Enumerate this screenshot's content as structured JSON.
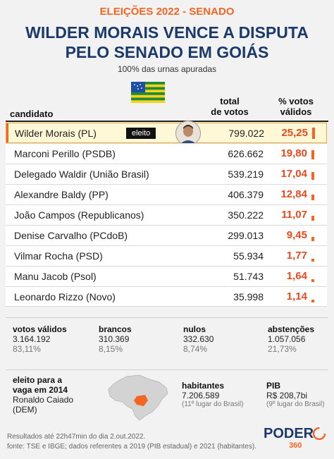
{
  "header": {
    "kicker": "ELEIÇÕES 2022 - SENADO",
    "title_line1": "WILDER MORAIS VENCE A DISPUTA",
    "title_line2": "PELO SENADO EM GOIÁS",
    "subtitle": "100% das urnas apuradas"
  },
  "table": {
    "col_candidate": "candidato",
    "col_votes_l1": "total",
    "col_votes_l2": "de votos",
    "col_pct_l1": "% votos",
    "col_pct_l2": "válidos",
    "winner_badge": "eleito",
    "rows": [
      {
        "name": "Wilder Morais (PL)",
        "votes": "799.022",
        "pct": "25,25",
        "pct_value": 25.25
      },
      {
        "name": "Marconi Perillo (PSDB)",
        "votes": "626.662",
        "pct": "19,80",
        "pct_value": 19.8
      },
      {
        "name": "Delegado Waldir (União Brasil)",
        "votes": "539.219",
        "pct": "17,04",
        "pct_value": 17.04
      },
      {
        "name": "Alexandre Baldy (PP)",
        "votes": "406.379",
        "pct": "12,84",
        "pct_value": 12.84
      },
      {
        "name": "João Campos (Republicanos)",
        "votes": "350.222",
        "pct": "11,07",
        "pct_value": 11.07
      },
      {
        "name": "Denise Carvalho (PCdoB)",
        "votes": "299.013",
        "pct": "9,45",
        "pct_value": 9.45
      },
      {
        "name": "Vilmar Rocha (PSD)",
        "votes": "55.934",
        "pct": "1,77",
        "pct_value": 1.77
      },
      {
        "name": "Manu Jacob (Psol)",
        "votes": "51.743",
        "pct": "1,64",
        "pct_value": 1.64
      },
      {
        "name": "Leonardo Rizzo (Novo)",
        "votes": "35.998",
        "pct": "1,14",
        "pct_value": 1.14
      }
    ]
  },
  "stats": [
    {
      "label": "votos válidos",
      "value": "3.164.192",
      "pct": "83,11%"
    },
    {
      "label": "brancos",
      "value": "310.369",
      "pct": "8,15%"
    },
    {
      "label": "nulos",
      "value": "332.630",
      "pct": "8,74%"
    },
    {
      "label": "abstenções",
      "value": "1.057.056",
      "pct": "21,73%"
    }
  ],
  "info": {
    "elected2014_l1": "eleito para a",
    "elected2014_l2": "vaga em 2014",
    "elected2014_name": "Ronaldo Caiado",
    "elected2014_party": "(DEM)",
    "hab_label": "habitantes",
    "hab_value": "7.206.589",
    "hab_rank": "(11º lugar do Brasil)",
    "pib_label": "PIB",
    "pib_value": "R$ 208,7bi",
    "pib_rank": "(9º lugar do Brasil)"
  },
  "footer": {
    "line1": "Resultados até 22h47min do dia 2.out.2022.",
    "line2": "fonte: TSE e IBGE; dados referentes a 2019 (PIB estadual) e 2021 (habitantes).",
    "logo_word": "PODER",
    "logo_num": "360"
  },
  "colors": {
    "accent": "#f26522",
    "navy": "#1b3a6b",
    "winner_bg": "#fff8d6"
  }
}
